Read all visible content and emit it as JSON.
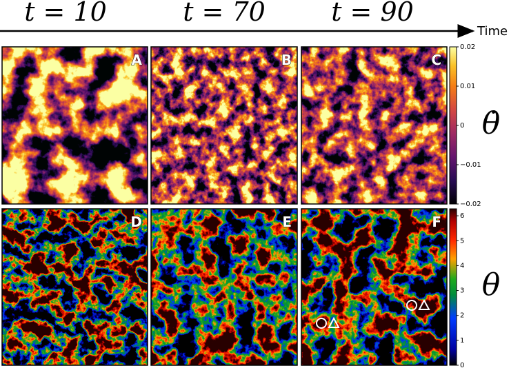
{
  "header": {
    "time_labels": [
      "t = 10",
      "t = 70",
      "t = 90"
    ],
    "axis_label": "Time"
  },
  "panels": [
    "A",
    "B",
    "C",
    "D",
    "E",
    "F"
  ],
  "colorbars": [
    {
      "symbol": "θ̇",
      "lim": [
        -0.02,
        0.02
      ],
      "ticks": [
        0.02,
        0.01,
        0,
        {
          "value": -0.01,
          "label": "−0.01"
        },
        {
          "value": -0.02,
          "label": "−0.02"
        }
      ]
    },
    {
      "symbol": "θ",
      "lim": [
        0,
        6.28
      ],
      "ticks": [
        0,
        1,
        2,
        3,
        4,
        5,
        6
      ]
    }
  ]
}
